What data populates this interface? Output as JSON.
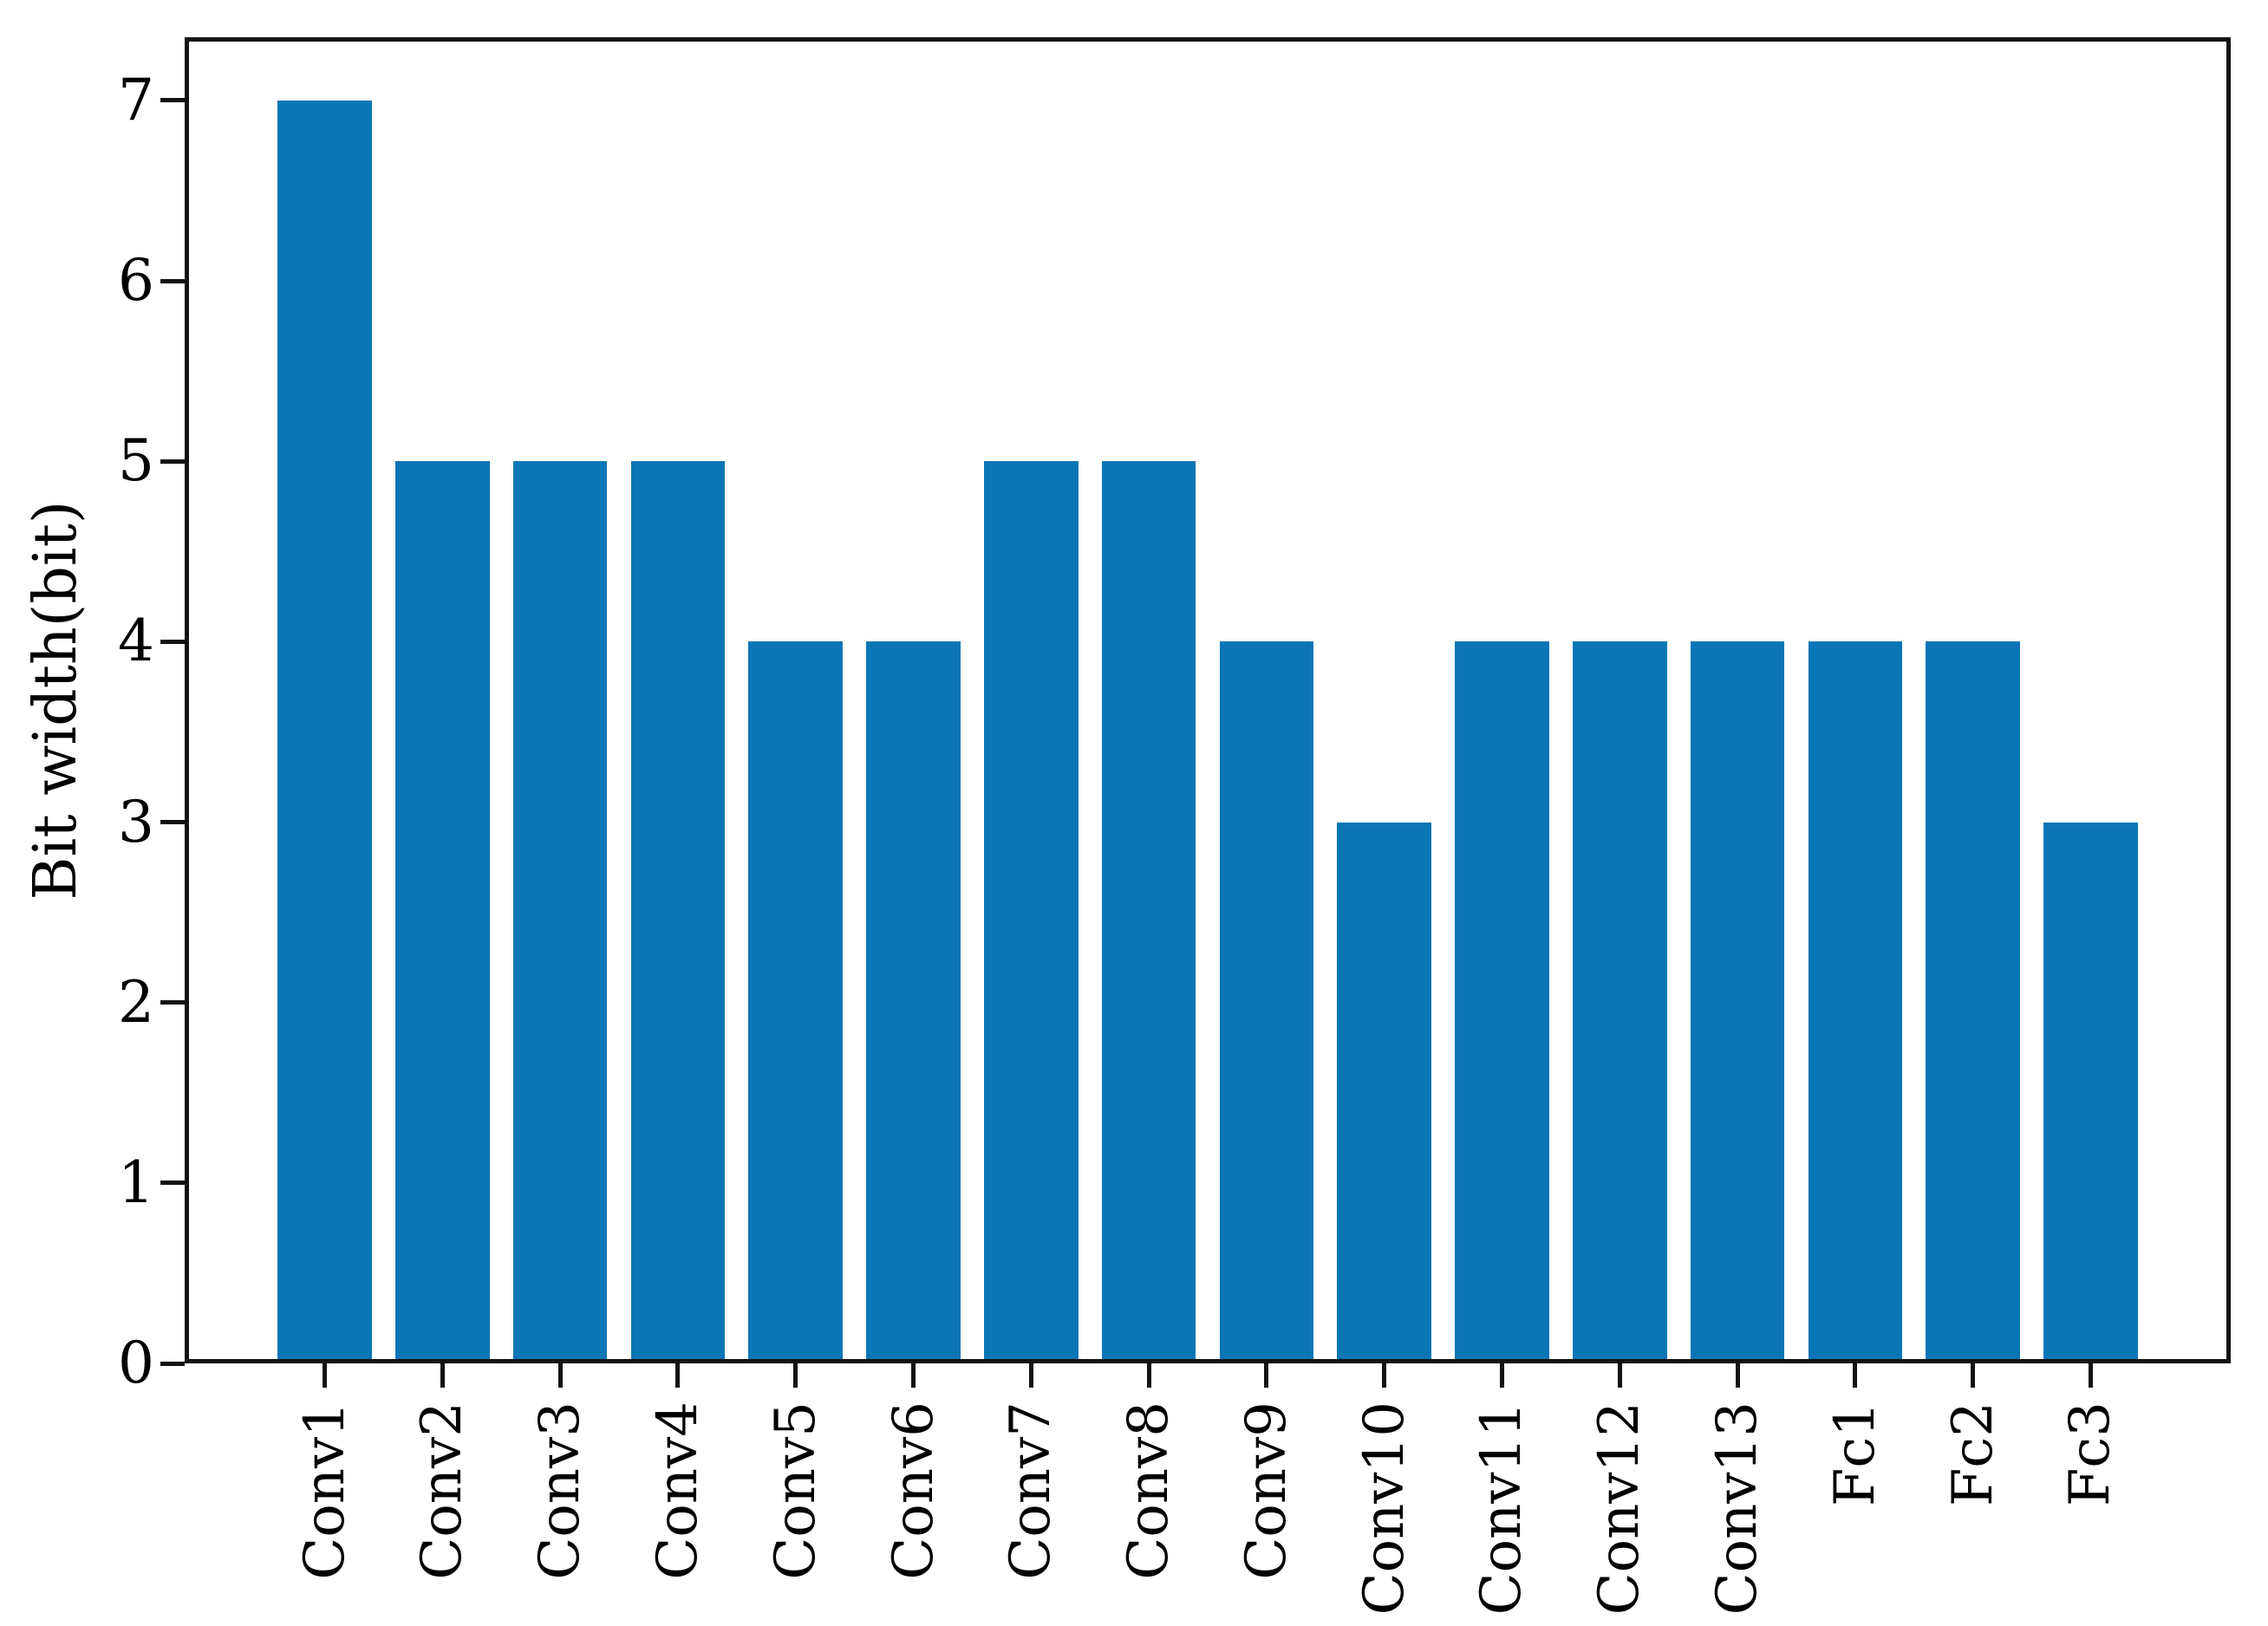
{
  "chart_data": {
    "type": "bar",
    "categories": [
      "Conv1",
      "Conv2",
      "Conv3",
      "Conv4",
      "Conv5",
      "Conv6",
      "Conv7",
      "Conv8",
      "Conv9",
      "Conv10",
      "Conv11",
      "Conv12",
      "Conv13",
      "Fc1",
      "Fc2",
      "Fc3"
    ],
    "values": [
      7,
      5,
      5,
      5,
      4,
      4,
      5,
      5,
      4,
      3,
      4,
      4,
      4,
      4,
      4,
      3
    ],
    "title": "",
    "xlabel": "",
    "ylabel": "Bit width(bit)",
    "ylim": [
      0,
      7.35
    ],
    "yticks": [
      0,
      1,
      2,
      3,
      4,
      5,
      6,
      7
    ],
    "x_tick_rotation": 90,
    "bar_width_fraction": 0.8,
    "grid": false,
    "legend": null,
    "bar_color": "#0a76b6",
    "axis_color": "#131313",
    "text_color": "#000000",
    "background_color": "#ffffff"
  }
}
